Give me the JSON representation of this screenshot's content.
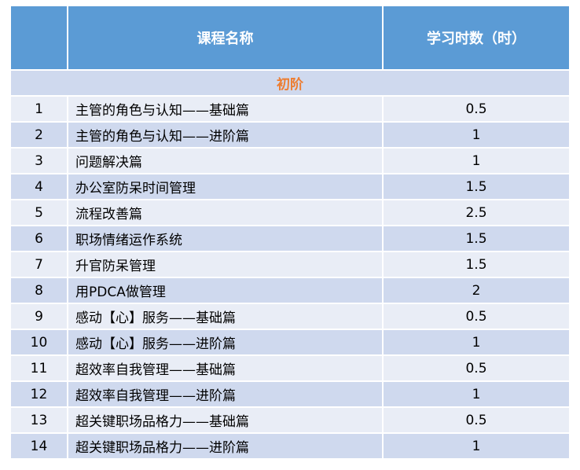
{
  "table": {
    "headers": {
      "index": "",
      "name": "课程名称",
      "hours": "学习时数（时）"
    },
    "section": "初阶",
    "rows": [
      {
        "no": "1",
        "name": "主管的角色与认知——基础篇",
        "hours": "0.5"
      },
      {
        "no": "2",
        "name": "主管的角色与认知——进阶篇",
        "hours": "1"
      },
      {
        "no": "3",
        "name": "问题解决篇",
        "hours": "1"
      },
      {
        "no": "4",
        "name": "办公室防呆时间管理",
        "hours": "1.5"
      },
      {
        "no": "5",
        "name": "流程改善篇",
        "hours": "2.5"
      },
      {
        "no": "6",
        "name": "职场情绪运作系统",
        "hours": "1.5"
      },
      {
        "no": "7",
        "name": "升官防呆管理",
        "hours": "1.5"
      },
      {
        "no": "8",
        "name": "用PDCA做管理",
        "hours": "2"
      },
      {
        "no": "9",
        "name": "感动【心】服务——基础篇",
        "hours": "0.5"
      },
      {
        "no": "10",
        "name": "感动【心】服务——进阶篇",
        "hours": "1"
      },
      {
        "no": "11",
        "name": "超效率自我管理——基础篇",
        "hours": "0.5"
      },
      {
        "no": "12",
        "name": "超效率自我管理——进阶篇",
        "hours": "1"
      },
      {
        "no": "13",
        "name": "超关键职场品格力——基础篇",
        "hours": "0.5"
      },
      {
        "no": "14",
        "name": "超关键职场品格力——进阶篇",
        "hours": "1"
      }
    ]
  },
  "colors": {
    "header_bg": "#5b9bd5",
    "row_light": "#e9edf6",
    "row_dark": "#cfd9ee",
    "section_text": "#ed7d31"
  }
}
